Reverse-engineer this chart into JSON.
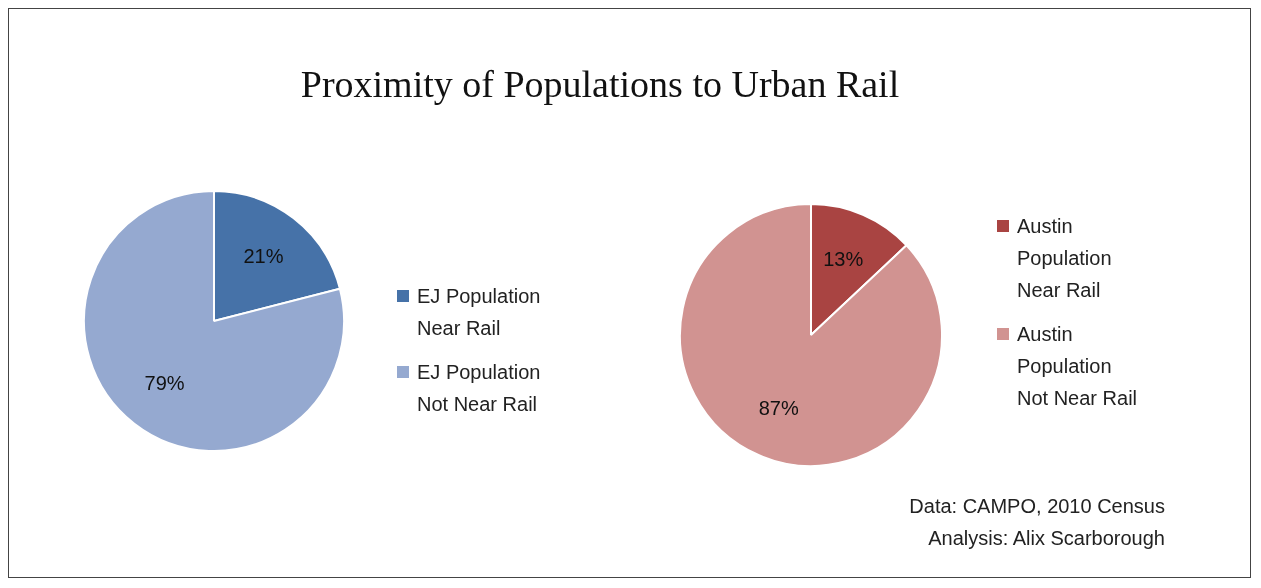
{
  "chart_data": [
    {
      "type": "pie",
      "title": "Proximity of Populations to Urban Rail",
      "categories": [
        "EJ Population Near Rail",
        "EJ Population Not Near Rail"
      ],
      "values": [
        21,
        79
      ],
      "colors": [
        "#4672a8",
        "#95a9d0"
      ],
      "value_labels": [
        "21%",
        "79%"
      ],
      "legend": "right"
    },
    {
      "type": "pie",
      "categories": [
        "Austin Population Near Rail",
        "Austin Population Not Near Rail"
      ],
      "values": [
        13,
        87
      ],
      "colors": [
        "#a94442",
        "#d19391"
      ],
      "value_labels": [
        "13%",
        "87%"
      ],
      "legend": "right",
      "annotations": [
        "Data: CAMPO, 2010 Census",
        "Analysis: Alix Scarborough"
      ]
    }
  ]
}
